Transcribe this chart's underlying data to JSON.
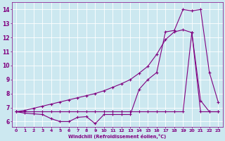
{
  "xlabel": "Windchill (Refroidissement éolien,°C)",
  "bg_color": "#cce8f0",
  "grid_color": "#ffffff",
  "line_color": "#800080",
  "xlim": [
    -0.5,
    23.5
  ],
  "ylim": [
    5.6,
    14.5
  ],
  "yticks": [
    6,
    7,
    8,
    9,
    10,
    11,
    12,
    13,
    14
  ],
  "xticks": [
    0,
    1,
    2,
    3,
    4,
    5,
    6,
    7,
    8,
    9,
    10,
    11,
    12,
    13,
    14,
    15,
    16,
    17,
    18,
    19,
    20,
    21,
    22,
    23
  ],
  "s1_x": [
    0,
    1,
    2,
    3,
    4,
    5,
    6,
    7,
    8,
    9,
    10,
    11,
    12,
    13,
    14,
    15,
    16,
    17,
    18,
    19,
    20,
    21,
    22,
    23
  ],
  "s1_y": [
    6.7,
    6.6,
    6.55,
    6.5,
    6.2,
    6.0,
    6.0,
    6.3,
    6.35,
    5.85,
    6.5,
    6.5,
    6.5,
    6.5,
    8.3,
    9.0,
    9.5,
    12.4,
    12.5,
    14.0,
    13.9,
    14.0,
    9.5,
    7.4
  ],
  "s2_x": [
    0,
    1,
    2,
    3,
    4,
    5,
    6,
    7,
    8,
    9,
    10,
    11,
    12,
    13,
    14,
    15,
    16,
    17,
    18,
    19,
    20,
    21,
    22,
    23
  ],
  "s2_y": [
    6.7,
    6.7,
    6.7,
    6.7,
    6.7,
    6.7,
    6.7,
    6.7,
    6.7,
    6.7,
    6.7,
    6.7,
    6.7,
    6.7,
    6.7,
    6.7,
    6.7,
    6.7,
    6.7,
    6.7,
    12.35,
    6.7,
    6.7,
    6.7
  ],
  "s3_x": [
    0,
    1,
    2,
    3,
    4,
    5,
    6,
    7,
    8,
    9,
    10,
    11,
    12,
    13,
    14,
    15,
    16,
    17,
    18,
    19,
    20,
    21,
    22,
    23
  ],
  "s3_y": [
    6.7,
    6.8,
    6.95,
    7.1,
    7.25,
    7.4,
    7.55,
    7.7,
    7.85,
    8.0,
    8.2,
    8.45,
    8.7,
    9.0,
    9.45,
    9.95,
    10.8,
    11.85,
    12.4,
    12.55,
    12.35,
    7.5,
    6.7,
    6.7
  ]
}
